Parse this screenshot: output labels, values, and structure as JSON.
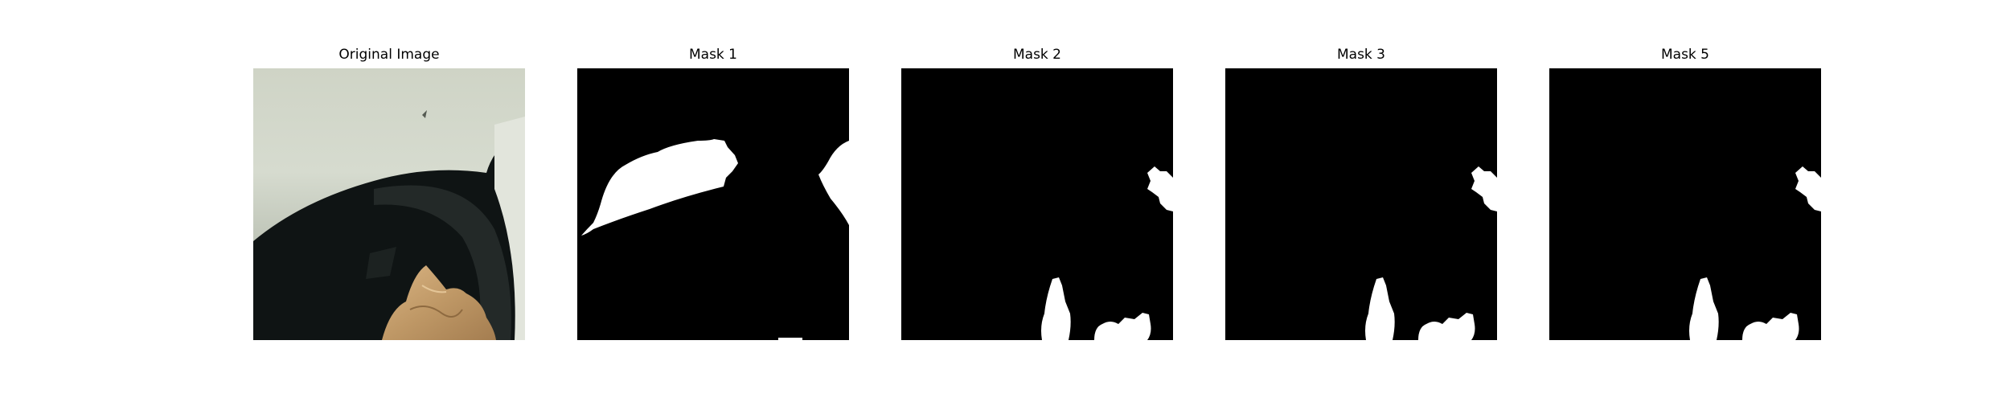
{
  "figure": {
    "panels": [
      {
        "title": "Original Image",
        "kind": "photo"
      },
      {
        "title": "Mask 1",
        "kind": "mask"
      },
      {
        "title": "Mask 2",
        "kind": "mask"
      },
      {
        "title": "Mask 3",
        "kind": "mask"
      },
      {
        "title": "Mask 5",
        "kind": "mask"
      }
    ]
  },
  "colors": {
    "mask_background": "#000000",
    "mask_foreground": "#ffffff",
    "car_body": "#d3d8cb",
    "tire": "#1a1f1e",
    "paper": "#c49e6e"
  }
}
